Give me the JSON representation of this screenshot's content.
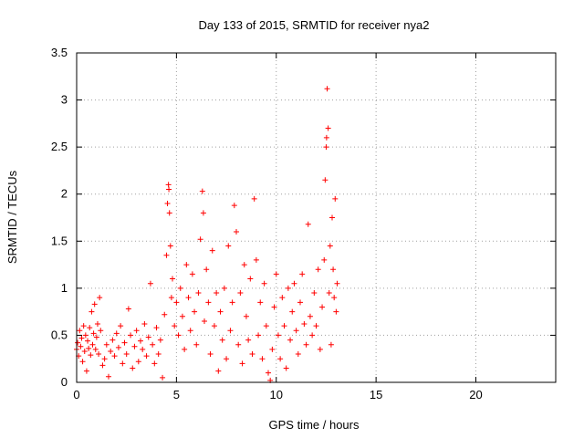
{
  "chart_data": {
    "type": "scatter",
    "title": "Day 133 of 2015, SRMTID for receiver nya2",
    "xlabel": "GPS time / hours",
    "ylabel": "SRMTID / TECUs",
    "xlim": [
      0,
      24
    ],
    "ylim": [
      0,
      3.5
    ],
    "xticks": [
      0,
      5,
      10,
      15,
      20
    ],
    "yticks": [
      0,
      0.5,
      1,
      1.5,
      2,
      2.5,
      3,
      3.5
    ],
    "grid": true,
    "marker": "plus",
    "color": "#ff0000",
    "series": [
      {
        "name": "",
        "points": [
          [
            0.0,
            0.35
          ],
          [
            0.05,
            0.42
          ],
          [
            0.1,
            0.28
          ],
          [
            0.15,
            0.55
          ],
          [
            0.2,
            0.38
          ],
          [
            0.25,
            0.47
          ],
          [
            0.3,
            0.22
          ],
          [
            0.35,
            0.6
          ],
          [
            0.4,
            0.33
          ],
          [
            0.45,
            0.5
          ],
          [
            0.5,
            0.12
          ],
          [
            0.55,
            0.44
          ],
          [
            0.6,
            0.36
          ],
          [
            0.65,
            0.58
          ],
          [
            0.7,
            0.29
          ],
          [
            0.75,
            0.75
          ],
          [
            0.8,
            0.4
          ],
          [
            0.85,
            0.52
          ],
          [
            0.9,
            0.83
          ],
          [
            0.95,
            0.35
          ],
          [
            1.0,
            0.48
          ],
          [
            1.05,
            0.62
          ],
          [
            1.1,
            0.3
          ],
          [
            1.15,
            0.9
          ],
          [
            1.2,
            0.55
          ],
          [
            1.3,
            0.18
          ],
          [
            1.4,
            0.25
          ],
          [
            1.5,
            0.4
          ],
          [
            1.6,
            0.06
          ],
          [
            1.7,
            0.33
          ],
          [
            1.8,
            0.45
          ],
          [
            1.9,
            0.28
          ],
          [
            2.0,
            0.52
          ],
          [
            2.1,
            0.37
          ],
          [
            2.2,
            0.6
          ],
          [
            2.3,
            0.2
          ],
          [
            2.4,
            0.42
          ],
          [
            2.5,
            0.3
          ],
          [
            2.6,
            0.78
          ],
          [
            2.7,
            0.5
          ],
          [
            2.8,
            0.15
          ],
          [
            2.9,
            0.38
          ],
          [
            3.0,
            0.55
          ],
          [
            3.1,
            0.22
          ],
          [
            3.2,
            0.44
          ],
          [
            3.3,
            0.35
          ],
          [
            3.4,
            0.62
          ],
          [
            3.5,
            0.28
          ],
          [
            3.6,
            0.48
          ],
          [
            3.7,
            1.05
          ],
          [
            3.8,
            0.4
          ],
          [
            3.9,
            0.2
          ],
          [
            4.0,
            0.58
          ],
          [
            4.1,
            0.3
          ],
          [
            4.2,
            0.45
          ],
          [
            4.3,
            0.05
          ],
          [
            4.4,
            0.72
          ],
          [
            4.5,
            1.35
          ],
          [
            4.55,
            1.9
          ],
          [
            4.6,
            2.1
          ],
          [
            4.62,
            2.05
          ],
          [
            4.65,
            1.8
          ],
          [
            4.7,
            1.45
          ],
          [
            4.75,
            0.9
          ],
          [
            4.8,
            1.1
          ],
          [
            4.9,
            0.6
          ],
          [
            5.0,
            0.85
          ],
          [
            5.1,
            0.5
          ],
          [
            5.2,
            1.0
          ],
          [
            5.3,
            0.7
          ],
          [
            5.4,
            0.35
          ],
          [
            5.5,
            1.25
          ],
          [
            5.6,
            0.9
          ],
          [
            5.7,
            0.55
          ],
          [
            5.8,
            1.15
          ],
          [
            5.9,
            0.75
          ],
          [
            6.0,
            0.4
          ],
          [
            6.1,
            0.95
          ],
          [
            6.2,
            1.52
          ],
          [
            6.3,
            2.03
          ],
          [
            6.35,
            1.8
          ],
          [
            6.4,
            0.65
          ],
          [
            6.5,
            1.2
          ],
          [
            6.6,
            0.85
          ],
          [
            6.7,
            0.3
          ],
          [
            6.8,
            1.4
          ],
          [
            6.9,
            0.6
          ],
          [
            7.0,
            0.95
          ],
          [
            7.1,
            0.12
          ],
          [
            7.2,
            0.75
          ],
          [
            7.3,
            0.45
          ],
          [
            7.4,
            1.0
          ],
          [
            7.5,
            0.25
          ],
          [
            7.6,
            1.45
          ],
          [
            7.7,
            0.55
          ],
          [
            7.8,
            0.85
          ],
          [
            7.9,
            1.88
          ],
          [
            8.0,
            1.6
          ],
          [
            8.1,
            0.4
          ],
          [
            8.2,
            0.95
          ],
          [
            8.3,
            0.2
          ],
          [
            8.4,
            1.25
          ],
          [
            8.5,
            0.7
          ],
          [
            8.6,
            0.45
          ],
          [
            8.7,
            1.1
          ],
          [
            8.8,
            0.3
          ],
          [
            8.9,
            1.95
          ],
          [
            9.0,
            1.3
          ],
          [
            9.1,
            0.5
          ],
          [
            9.2,
            0.85
          ],
          [
            9.3,
            0.25
          ],
          [
            9.4,
            1.05
          ],
          [
            9.5,
            0.6
          ],
          [
            9.6,
            0.1
          ],
          [
            9.7,
            0.02
          ],
          [
            9.8,
            0.35
          ],
          [
            9.9,
            0.8
          ],
          [
            10.0,
            1.15
          ],
          [
            10.1,
            0.5
          ],
          [
            10.2,
            0.25
          ],
          [
            10.3,
            0.9
          ],
          [
            10.4,
            0.6
          ],
          [
            10.5,
            0.15
          ],
          [
            10.6,
            1.0
          ],
          [
            10.7,
            0.45
          ],
          [
            10.8,
            0.75
          ],
          [
            10.9,
            1.05
          ],
          [
            11.0,
            0.55
          ],
          [
            11.1,
            0.3
          ],
          [
            11.2,
            0.85
          ],
          [
            11.3,
            1.15
          ],
          [
            11.4,
            0.62
          ],
          [
            11.5,
            0.4
          ],
          [
            11.6,
            1.68
          ],
          [
            11.7,
            0.7
          ],
          [
            11.8,
            0.5
          ],
          [
            11.9,
            0.95
          ],
          [
            12.0,
            0.6
          ],
          [
            12.1,
            1.2
          ],
          [
            12.2,
            0.35
          ],
          [
            12.3,
            0.8
          ],
          [
            12.4,
            1.3
          ],
          [
            12.45,
            2.15
          ],
          [
            12.5,
            2.5
          ],
          [
            12.52,
            2.6
          ],
          [
            12.55,
            3.12
          ],
          [
            12.6,
            2.7
          ],
          [
            12.65,
            0.95
          ],
          [
            12.7,
            1.45
          ],
          [
            12.75,
            0.4
          ],
          [
            12.8,
            1.75
          ],
          [
            12.85,
            1.2
          ],
          [
            12.9,
            0.9
          ],
          [
            12.95,
            1.95
          ],
          [
            13.0,
            0.75
          ],
          [
            13.05,
            1.05
          ]
        ]
      }
    ]
  }
}
